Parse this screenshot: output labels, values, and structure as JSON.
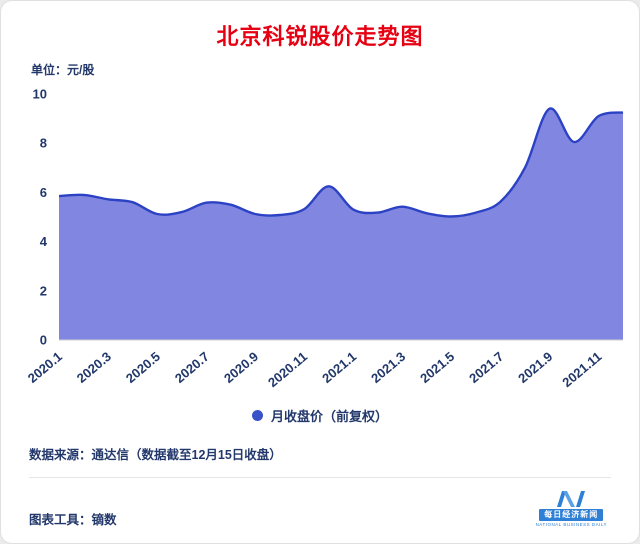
{
  "title": "北京科锐股价走势图",
  "unit_label": "单位：元/股",
  "legend": {
    "label": "月收盘价（前复权）"
  },
  "footer": {
    "source": "数据来源：通达信（数据截至12月15日收盘）",
    "tool": "图表工具：镝数"
  },
  "logo": {
    "name": "每日经济新闻",
    "subtext": "NATIONAL BUSINESS DAILY"
  },
  "colors": {
    "title": "#e60012",
    "text": "#24396b",
    "area_fill": "#8186e0",
    "line": "#2c42c4",
    "legend_dot": "#3a52c8",
    "axis": "#cfcfcf",
    "logo_blue": "#2e7fd6"
  },
  "chart_data": {
    "type": "area",
    "title": "北京科锐股价走势图",
    "x": [
      "2020.1",
      "2020.2",
      "2020.3",
      "2020.4",
      "2020.5",
      "2020.6",
      "2020.7",
      "2020.8",
      "2020.9",
      "2020.10",
      "2020.11",
      "2020.12",
      "2021.1",
      "2021.2",
      "2021.3",
      "2021.4",
      "2021.5",
      "2021.6",
      "2021.7",
      "2021.8",
      "2021.9",
      "2021.10",
      "2021.11",
      "2021.12"
    ],
    "series": [
      {
        "name": "月收盘价（前复权）",
        "values": [
          5.85,
          5.9,
          5.72,
          5.6,
          5.12,
          5.2,
          5.58,
          5.5,
          5.12,
          5.08,
          5.32,
          6.25,
          5.3,
          5.18,
          5.42,
          5.15,
          5.02,
          5.18,
          5.62,
          7.0,
          9.4,
          8.05,
          9.1,
          9.25
        ]
      }
    ],
    "xticks": [
      "2020.1",
      "2020.3",
      "2020.5",
      "2020.7",
      "2020.9",
      "2020.11",
      "2021.1",
      "2021.3",
      "2021.5",
      "2021.7",
      "2021.9",
      "2021.11"
    ],
    "ylabel": "元/股",
    "ylim": [
      0,
      10
    ],
    "yticks": [
      0,
      2,
      4,
      6,
      8,
      10
    ],
    "grid": false,
    "legend_position": "bottom"
  }
}
